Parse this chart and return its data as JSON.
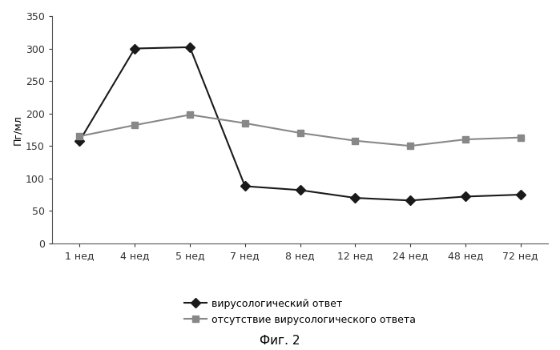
{
  "x_labels": [
    "1 нед",
    "4 нед",
    "5 нед",
    "7 нед",
    "8 нед",
    "12 нед",
    "24 нед",
    "48 нед",
    "72 нед"
  ],
  "x_positions": [
    0,
    1,
    2,
    3,
    4,
    5,
    6,
    7,
    8
  ],
  "series1_label": "вирусологический ответ",
  "series1_values": [
    158,
    300,
    302,
    88,
    82,
    70,
    66,
    72,
    75
  ],
  "series1_color": "#1a1a1a",
  "series1_marker": "D",
  "series2_label": "отсутствие вирусологического ответа",
  "series2_values": [
    165,
    182,
    198,
    185,
    170,
    158,
    150,
    160,
    163
  ],
  "series2_color": "#888888",
  "series2_marker": "s",
  "ylabel": "Пг/мл",
  "ylim": [
    0,
    350
  ],
  "yticks": [
    0,
    50,
    100,
    150,
    200,
    250,
    300,
    350
  ],
  "caption": "Фиг. 2",
  "background_color": "#ffffff",
  "axis_fontsize": 9,
  "legend_fontsize": 9,
  "caption_fontsize": 11
}
